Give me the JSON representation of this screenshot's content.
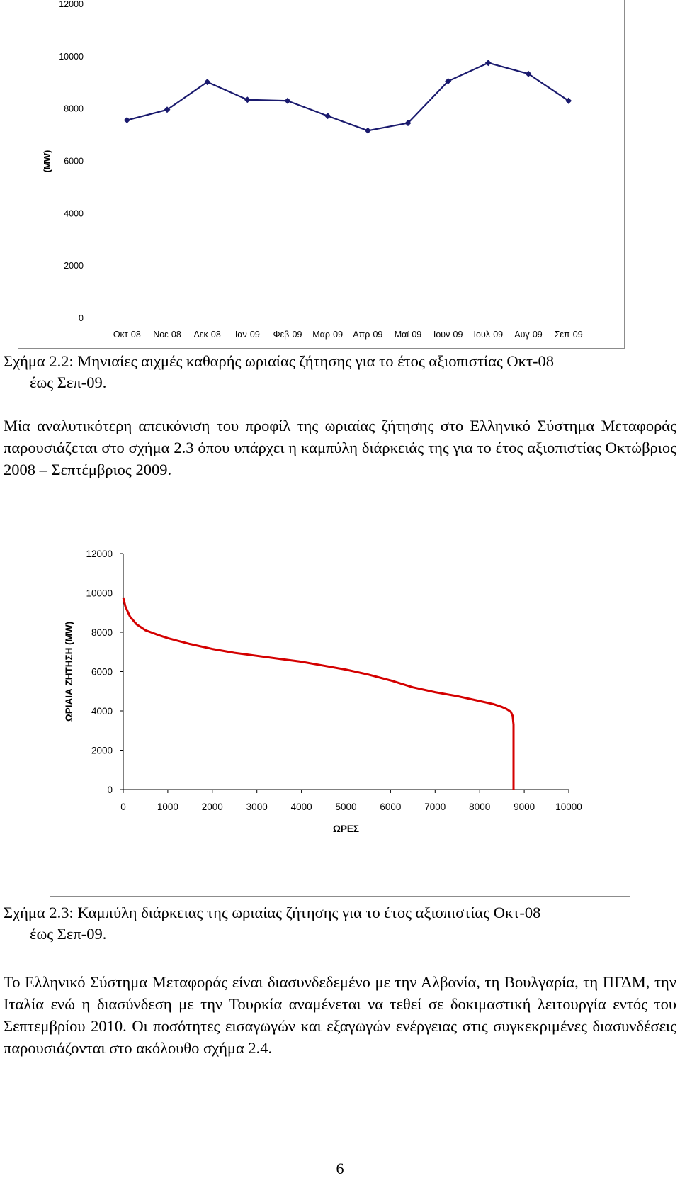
{
  "figure_2_2": {
    "caption_line1": "Σχήμα 2.2: Μηνιαίες αιχμές καθαρής ωριαίας ζήτησης για το έτος αξιοπιστίας Οκτ-08",
    "caption_line2": "έως Σεπ-09."
  },
  "paragraph_1": "Μία αναλυτικότερη απεικόνιση του προφίλ της ωριαίας ζήτησης στο Ελληνικό Σύστημα Μεταφοράς παρουσιάζεται στο σχήμα 2.3 όπου υπάρχει η καμπύλη διάρκειάς της για το έτος αξιοπιστίας Οκτώβριος 2008 – Σεπτέμβριος 2009.",
  "figure_2_3": {
    "caption_line1": "Σχήμα 2.3: Καμπύλη διάρκειας της ωριαίας ζήτησης για το έτος αξιοπιστίας Οκτ-08",
    "caption_line2": "έως Σεπ-09."
  },
  "paragraph_2": "Το Ελληνικό Σύστημα Μεταφοράς είναι διασυνδεδεμένο με την Αλβανία, τη Βουλγαρία, τη ΠΓΔΜ, την Ιταλία ενώ η διασύνδεση με την Τουρκία αναμένεται να τεθεί σε δοκιμαστική λειτουργία εντός του Σεπτεμβρίου 2010. Οι ποσότητες εισαγωγών και εξαγωγών ενέργειας στις συγκεκριμένες διασυνδέσεις παρουσιάζονται στο ακόλουθο σχήμα 2.4.",
  "page_number": "6",
  "colors": {
    "series_line": "#1a1a6e",
    "duration_curve": "#d40000",
    "axis": "#000000",
    "frame": "#8c8c8c"
  },
  "chart_data": [
    {
      "type": "line",
      "title": "",
      "xlabel": "",
      "ylabel": "(MW)",
      "categories": [
        "Οκτ-08",
        "Νοε-08",
        "Δεκ-08",
        "Ιαν-09",
        "Φεβ-09",
        "Μαρ-09",
        "Απρ-09",
        "Μαϊ-09",
        "Ιουν-09",
        "Ιουλ-09",
        "Αυγ-09",
        "Σεπ-09"
      ],
      "values": [
        7570,
        7970,
        9030,
        8350,
        8310,
        7730,
        7170,
        7460,
        9060,
        9760,
        9340,
        8310
      ],
      "ylim": [
        0,
        12000
      ],
      "yticks": [
        0,
        2000,
        4000,
        6000,
        8000,
        10000,
        12000
      ],
      "grid": false,
      "markers": "diamond"
    },
    {
      "type": "line",
      "title": "",
      "xlabel": "ΩΡΕΣ",
      "ylabel": "ΩΡΙΑΙΑ ΖΗΤΗΣΗ (MW)",
      "x": [
        0,
        50,
        150,
        300,
        500,
        800,
        1000,
        1500,
        2000,
        2500,
        3000,
        3500,
        4000,
        4500,
        5000,
        5500,
        6000,
        6500,
        7000,
        7500,
        8000,
        8300,
        8500,
        8600,
        8700,
        8740,
        8760,
        8760
      ],
      "y": [
        9760,
        9300,
        8800,
        8400,
        8100,
        7850,
        7700,
        7400,
        7150,
        6950,
        6800,
        6650,
        6500,
        6300,
        6100,
        5850,
        5550,
        5200,
        4950,
        4750,
        4500,
        4350,
        4200,
        4100,
        3950,
        3750,
        3300,
        0
      ],
      "xlim": [
        0,
        10000
      ],
      "ylim": [
        0,
        12000
      ],
      "xticks": [
        0,
        1000,
        2000,
        3000,
        4000,
        5000,
        6000,
        7000,
        8000,
        9000,
        10000
      ],
      "yticks": [
        0,
        2000,
        4000,
        6000,
        8000,
        10000,
        12000
      ],
      "grid": false
    }
  ]
}
